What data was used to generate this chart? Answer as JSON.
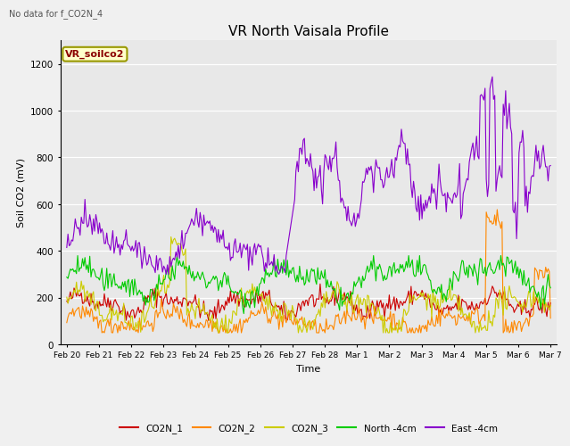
{
  "title": "VR North Vaisala Profile",
  "subtitle": "No data for f_CO2N_4",
  "ylabel": "Soil CO2 (mV)",
  "xlabel": "Time",
  "legend_label": "VR_soilco2",
  "ylim": [
    0,
    1300
  ],
  "yticks": [
    0,
    200,
    400,
    600,
    800,
    1000,
    1200
  ],
  "fig_bg": "#f0f0f0",
  "plot_bg": "#e8e8e8",
  "series": {
    "CO2N_1": {
      "color": "#cc0000",
      "label": "CO2N_1"
    },
    "CO2N_2": {
      "color": "#ff8800",
      "label": "CO2N_2"
    },
    "CO2N_3": {
      "color": "#cccc00",
      "label": "CO2N_3"
    },
    "North_4cm": {
      "color": "#00cc00",
      "label": "North -4cm"
    },
    "East_4cm": {
      "color": "#8800cc",
      "label": "East -4cm"
    }
  },
  "n_points": 400,
  "xtick_labels": [
    "Feb 20",
    "Feb 21",
    "Feb 22",
    "Feb 23",
    "Feb 24",
    "Feb 25",
    "Feb 26",
    "Feb 27",
    "Feb 28",
    "Mar 1",
    "Mar 2",
    "Mar 3",
    "Mar 4",
    "Mar 5",
    "Mar 6",
    "Mar 7"
  ],
  "xtick_positions": [
    0,
    1,
    2,
    3,
    4,
    5,
    6,
    7,
    8,
    9,
    10,
    11,
    12,
    13,
    14,
    15
  ]
}
